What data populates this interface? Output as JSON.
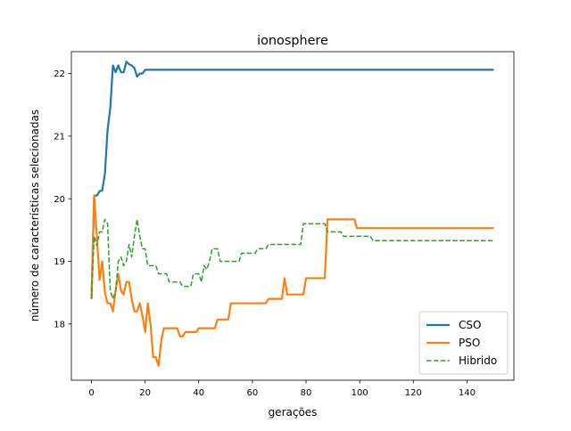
{
  "chart_data": {
    "type": "line",
    "title": "ionosphere",
    "xlabel": "gerações",
    "ylabel": "número de características selecionadas",
    "xlim": [
      -7.5,
      157.5
    ],
    "ylim": [
      17.1,
      22.35
    ],
    "xticks": [
      0,
      20,
      40,
      60,
      80,
      100,
      120,
      140
    ],
    "yticks": [
      18,
      19,
      20,
      21,
      22
    ],
    "grid": false,
    "legend_position": "lower-right",
    "series": [
      {
        "name": "CSO",
        "color": "#1f77b4",
        "style": "solid",
        "points": [
          [
            0,
            18.4
          ],
          [
            1,
            20.05
          ],
          [
            2,
            20.05
          ],
          [
            3,
            20.12
          ],
          [
            4,
            20.13
          ],
          [
            5,
            20.4
          ],
          [
            6,
            21.1
          ],
          [
            7,
            21.45
          ],
          [
            8,
            22.13
          ],
          [
            9,
            22.02
          ],
          [
            10,
            22.13
          ],
          [
            11,
            22.02
          ],
          [
            12,
            22.02
          ],
          [
            13,
            22.19
          ],
          [
            14,
            22.15
          ],
          [
            15,
            22.13
          ],
          [
            16,
            22.09
          ],
          [
            17,
            21.95
          ],
          [
            18,
            22.0
          ],
          [
            19,
            22.0
          ],
          [
            20,
            22.06
          ],
          [
            150,
            22.06
          ]
        ]
      },
      {
        "name": "PSO",
        "color": "#ff7f0e",
        "style": "solid",
        "points": [
          [
            0,
            18.4
          ],
          [
            1,
            20.05
          ],
          [
            2,
            19.4
          ],
          [
            3,
            18.7
          ],
          [
            4,
            19.0
          ],
          [
            5,
            18.5
          ],
          [
            6,
            18.33
          ],
          [
            7,
            18.33
          ],
          [
            8,
            18.2
          ],
          [
            9,
            18.53
          ],
          [
            10,
            18.8
          ],
          [
            11,
            18.53
          ],
          [
            12,
            18.47
          ],
          [
            13,
            18.67
          ],
          [
            14,
            18.67
          ],
          [
            15,
            18.4
          ],
          [
            16,
            18.2
          ],
          [
            17,
            18.2
          ],
          [
            18,
            18.33
          ],
          [
            19,
            18.13
          ],
          [
            20,
            17.87
          ],
          [
            21,
            18.33
          ],
          [
            22,
            18.0
          ],
          [
            23,
            17.47
          ],
          [
            24,
            17.47
          ],
          [
            25,
            17.33
          ],
          [
            26,
            17.73
          ],
          [
            27,
            17.93
          ],
          [
            32,
            17.93
          ],
          [
            33,
            17.8
          ],
          [
            34,
            17.8
          ],
          [
            35,
            17.87
          ],
          [
            39,
            17.87
          ],
          [
            40,
            17.93
          ],
          [
            46,
            17.93
          ],
          [
            47,
            18.07
          ],
          [
            51,
            18.07
          ],
          [
            52,
            18.33
          ],
          [
            65,
            18.33
          ],
          [
            66,
            18.4
          ],
          [
            71,
            18.4
          ],
          [
            72,
            18.73
          ],
          [
            73,
            18.47
          ],
          [
            79,
            18.47
          ],
          [
            80,
            18.73
          ],
          [
            87,
            18.73
          ],
          [
            88,
            19.67
          ],
          [
            98,
            19.67
          ],
          [
            99,
            19.53
          ],
          [
            150,
            19.53
          ]
        ]
      },
      {
        "name": "Hibrido",
        "color": "#2ca02c",
        "style": "dashed",
        "points": [
          [
            0,
            18.4
          ],
          [
            1,
            19.4
          ],
          [
            2,
            19.25
          ],
          [
            3,
            19.47
          ],
          [
            4,
            19.47
          ],
          [
            5,
            19.67
          ],
          [
            6,
            19.6
          ],
          [
            7,
            18.53
          ],
          [
            8,
            18.4
          ],
          [
            9,
            18.53
          ],
          [
            10,
            19.0
          ],
          [
            11,
            19.07
          ],
          [
            12,
            18.93
          ],
          [
            13,
            19.0
          ],
          [
            14,
            19.27
          ],
          [
            15,
            19.07
          ],
          [
            16,
            19.4
          ],
          [
            17,
            19.67
          ],
          [
            18,
            19.4
          ],
          [
            19,
            19.2
          ],
          [
            20,
            19.2
          ],
          [
            21,
            18.93
          ],
          [
            24,
            18.93
          ],
          [
            25,
            18.8
          ],
          [
            28,
            18.8
          ],
          [
            29,
            18.67
          ],
          [
            33,
            18.67
          ],
          [
            34,
            18.6
          ],
          [
            37,
            18.6
          ],
          [
            38,
            18.8
          ],
          [
            40,
            18.8
          ],
          [
            41,
            18.67
          ],
          [
            42,
            18.93
          ],
          [
            43,
            18.87
          ],
          [
            44,
            19.0
          ],
          [
            45,
            19.2
          ],
          [
            47,
            19.2
          ],
          [
            48,
            19.0
          ],
          [
            55,
            19.0
          ],
          [
            56,
            19.13
          ],
          [
            61,
            19.13
          ],
          [
            62,
            19.2
          ],
          [
            65,
            19.2
          ],
          [
            66,
            19.27
          ],
          [
            78,
            19.27
          ],
          [
            79,
            19.6
          ],
          [
            87,
            19.6
          ],
          [
            88,
            19.47
          ],
          [
            93,
            19.47
          ],
          [
            94,
            19.4
          ],
          [
            104,
            19.4
          ],
          [
            105,
            19.33
          ],
          [
            150,
            19.33
          ]
        ]
      }
    ]
  }
}
